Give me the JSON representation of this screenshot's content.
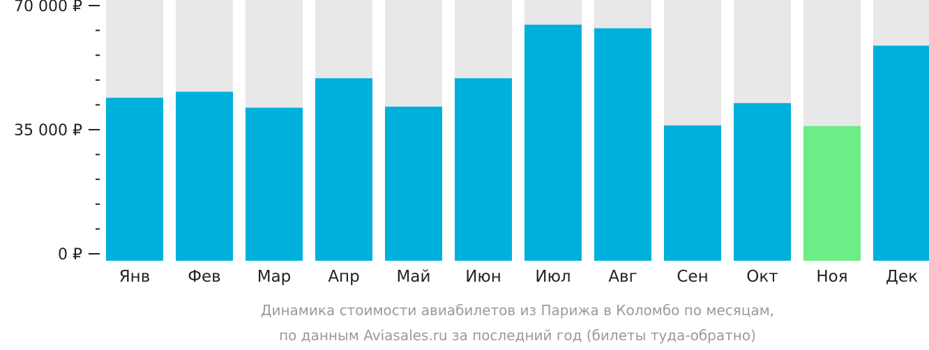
{
  "chart_data": {
    "type": "bar",
    "categories": [
      "Янв",
      "Фев",
      "Мар",
      "Апр",
      "Май",
      "Июн",
      "Июл",
      "Авг",
      "Сен",
      "Окт",
      "Ноя",
      "Дек"
    ],
    "values": [
      44000,
      45700,
      41200,
      49500,
      41500,
      49500,
      64600,
      63600,
      36200,
      42500,
      36000,
      58700
    ],
    "ylim": [
      0,
      73500
    ],
    "y_ticks": [
      {
        "value": 0,
        "label": "0 ₽"
      },
      {
        "value": 35000,
        "label": "35 000 ₽"
      },
      {
        "value": 70000,
        "label": "70 000 ₽"
      }
    ],
    "y_minor_step": 7000,
    "highlight_index": 10,
    "caption_lines": [
      "Динамика стоимости авиабилетов из Парижа в Коломбо по месяцам,",
      "по данным Aviasales.ru за последний год (билеты туда-обратно)"
    ],
    "grid": false
  },
  "colors": {
    "bar": "#00b0dc",
    "bar_highlight": "#6ced85",
    "bar_background": "#e8e8e8",
    "axis": "#222222",
    "caption": "#9a9a9a"
  }
}
